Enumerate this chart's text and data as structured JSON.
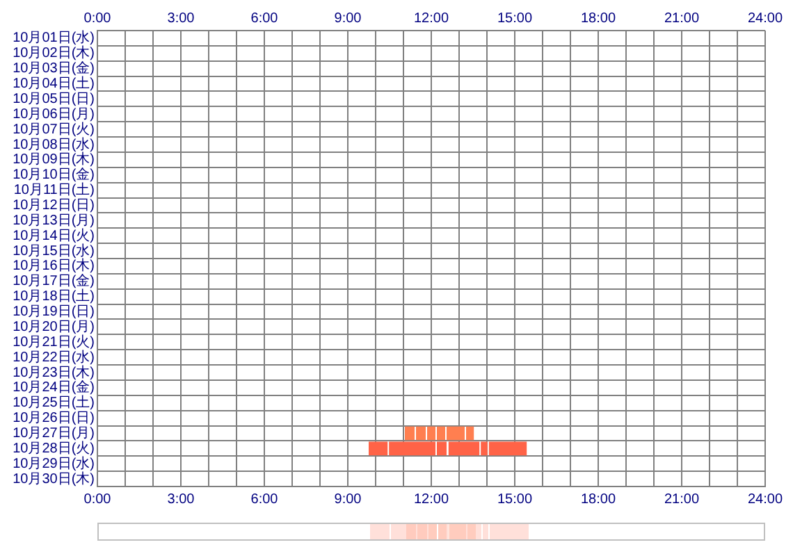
{
  "chart_data": {
    "type": "bar",
    "orientation": "horizontal",
    "grid": true,
    "legend": false,
    "categories": [
      "10月01日(水)",
      "10月02日(木)",
      "10月03日(金)",
      "10月04日(土)",
      "10月05日(日)",
      "10月06日(月)",
      "10月07日(火)",
      "10月08日(水)",
      "10月09日(木)",
      "10月10日(金)",
      "10月11日(土)",
      "10月12日(日)",
      "10月13日(月)",
      "10月14日(火)",
      "10月15日(水)",
      "10月16日(木)",
      "10月17日(金)",
      "10月18日(土)",
      "10月19日(日)",
      "10月20日(月)",
      "10月21日(火)",
      "10月22日(水)",
      "10月23日(木)",
      "10月24日(金)",
      "10月25日(土)",
      "10月26日(日)",
      "10月27日(月)",
      "10月28日(火)",
      "10月29日(水)",
      "10月30日(木)"
    ],
    "xlim": [
      0,
      24
    ],
    "xticks": [
      {
        "value": 0,
        "label": "0:00"
      },
      {
        "value": 1,
        "label": null
      },
      {
        "value": 2,
        "label": null
      },
      {
        "value": 3,
        "label": "3:00"
      },
      {
        "value": 4,
        "label": null
      },
      {
        "value": 5,
        "label": null
      },
      {
        "value": 6,
        "label": "6:00"
      },
      {
        "value": 7,
        "label": null
      },
      {
        "value": 8,
        "label": null
      },
      {
        "value": 9,
        "label": "9:00"
      },
      {
        "value": 10,
        "label": null
      },
      {
        "value": 11,
        "label": null
      },
      {
        "value": 12,
        "label": "12:00"
      },
      {
        "value": 13,
        "label": null
      },
      {
        "value": 14,
        "label": null
      },
      {
        "value": 15,
        "label": "15:00"
      },
      {
        "value": 16,
        "label": null
      },
      {
        "value": 17,
        "label": null
      },
      {
        "value": 18,
        "label": "18:00"
      },
      {
        "value": 19,
        "label": null
      },
      {
        "value": 20,
        "label": null
      },
      {
        "value": 21,
        "label": "21:00"
      },
      {
        "value": 22,
        "label": null
      },
      {
        "value": 23,
        "label": null
      },
      {
        "value": 24,
        "label": "24:00"
      }
    ],
    "x2lim": [
      0,
      24
    ],
    "x2ticks": [
      {
        "value": 0,
        "label": "0:00"
      },
      {
        "value": 1,
        "label": null
      },
      {
        "value": 2,
        "label": null
      },
      {
        "value": 3,
        "label": "3:00"
      },
      {
        "value": 4,
        "label": null
      },
      {
        "value": 5,
        "label": null
      },
      {
        "value": 6,
        "label": "6:00"
      },
      {
        "value": 7,
        "label": null
      },
      {
        "value": 8,
        "label": null
      },
      {
        "value": 9,
        "label": "9:00"
      },
      {
        "value": 10,
        "label": null
      },
      {
        "value": 11,
        "label": null
      },
      {
        "value": 12,
        "label": "12:00"
      },
      {
        "value": 13,
        "label": null
      },
      {
        "value": 14,
        "label": null
      },
      {
        "value": 15,
        "label": "15:00"
      },
      {
        "value": 16,
        "label": null
      },
      {
        "value": 17,
        "label": null
      },
      {
        "value": 18,
        "label": "18:00"
      },
      {
        "value": 19,
        "label": null
      },
      {
        "value": 20,
        "label": null
      },
      {
        "value": 21,
        "label": "21:00"
      },
      {
        "value": 22,
        "label": null
      },
      {
        "value": 23,
        "label": null
      },
      {
        "value": 24,
        "label": "24:00"
      }
    ],
    "series": [
      {
        "base": [
          null,
          null,
          null,
          null,
          null,
          null,
          null,
          null,
          null,
          null,
          null,
          null,
          null,
          null,
          null,
          null,
          null,
          null,
          null,
          null,
          null,
          null,
          null,
          null,
          null,
          null,
          11.05,
          9.75,
          null,
          null
        ],
        "values": [
          null,
          null,
          null,
          null,
          null,
          null,
          null,
          null,
          null,
          null,
          null,
          null,
          null,
          null,
          null,
          null,
          null,
          null,
          null,
          null,
          null,
          null,
          null,
          null,
          null,
          null,
          0.35,
          0.68,
          null,
          null
        ],
        "colors": [
          null,
          null,
          null,
          null,
          null,
          null,
          null,
          null,
          null,
          null,
          null,
          null,
          null,
          null,
          null,
          null,
          null,
          null,
          null,
          null,
          null,
          null,
          null,
          null,
          null,
          null,
          "#ff7f50",
          "#ff6347",
          null,
          null
        ]
      },
      {
        "base": [
          null,
          null,
          null,
          null,
          null,
          null,
          null,
          null,
          null,
          null,
          null,
          null,
          null,
          null,
          null,
          null,
          null,
          null,
          null,
          null,
          null,
          null,
          null,
          null,
          null,
          null,
          11.45,
          10.48,
          null,
          null
        ],
        "values": [
          null,
          null,
          null,
          null,
          null,
          null,
          null,
          null,
          null,
          null,
          null,
          null,
          null,
          null,
          null,
          null,
          null,
          null,
          null,
          null,
          null,
          null,
          null,
          null,
          null,
          null,
          0.35,
          1.67,
          null,
          null
        ],
        "colors": [
          null,
          null,
          null,
          null,
          null,
          null,
          null,
          null,
          null,
          null,
          null,
          null,
          null,
          null,
          null,
          null,
          null,
          null,
          null,
          null,
          null,
          null,
          null,
          null,
          null,
          null,
          "#ff7f50",
          "#ff6347",
          null,
          null
        ]
      },
      {
        "base": [
          null,
          null,
          null,
          null,
          null,
          null,
          null,
          null,
          null,
          null,
          null,
          null,
          null,
          null,
          null,
          null,
          null,
          null,
          null,
          null,
          null,
          null,
          null,
          null,
          null,
          null,
          11.85,
          12.2,
          null,
          null
        ],
        "values": [
          null,
          null,
          null,
          null,
          null,
          null,
          null,
          null,
          null,
          null,
          null,
          null,
          null,
          null,
          null,
          null,
          null,
          null,
          null,
          null,
          null,
          null,
          null,
          null,
          null,
          null,
          0.3,
          0.35,
          null,
          null
        ],
        "colors": [
          null,
          null,
          null,
          null,
          null,
          null,
          null,
          null,
          null,
          null,
          null,
          null,
          null,
          null,
          null,
          null,
          null,
          null,
          null,
          null,
          null,
          null,
          null,
          null,
          null,
          null,
          "#ff7f50",
          "#ff6347",
          null,
          null
        ]
      },
      {
        "base": [
          null,
          null,
          null,
          null,
          null,
          null,
          null,
          null,
          null,
          null,
          null,
          null,
          null,
          null,
          null,
          null,
          null,
          null,
          null,
          null,
          null,
          null,
          null,
          null,
          null,
          null,
          12.2,
          12.62,
          null,
          null
        ],
        "values": [
          null,
          null,
          null,
          null,
          null,
          null,
          null,
          null,
          null,
          null,
          null,
          null,
          null,
          null,
          null,
          null,
          null,
          null,
          null,
          null,
          null,
          null,
          null,
          null,
          null,
          null,
          0.3,
          1.11,
          null,
          null
        ],
        "colors": [
          null,
          null,
          null,
          null,
          null,
          null,
          null,
          null,
          null,
          null,
          null,
          null,
          null,
          null,
          null,
          null,
          null,
          null,
          null,
          null,
          null,
          null,
          null,
          null,
          null,
          null,
          "#ff7f50",
          "#ff6347",
          null,
          null
        ]
      },
      {
        "base": [
          null,
          null,
          null,
          null,
          null,
          null,
          null,
          null,
          null,
          null,
          null,
          null,
          null,
          null,
          null,
          null,
          null,
          null,
          null,
          null,
          null,
          null,
          null,
          null,
          null,
          null,
          12.55,
          13.78,
          null,
          null
        ],
        "values": [
          null,
          null,
          null,
          null,
          null,
          null,
          null,
          null,
          null,
          null,
          null,
          null,
          null,
          null,
          null,
          null,
          null,
          null,
          null,
          null,
          null,
          null,
          null,
          null,
          null,
          null,
          0.65,
          0.24,
          null,
          null
        ],
        "colors": [
          null,
          null,
          null,
          null,
          null,
          null,
          null,
          null,
          null,
          null,
          null,
          null,
          null,
          null,
          null,
          null,
          null,
          null,
          null,
          null,
          null,
          null,
          null,
          null,
          null,
          null,
          "#ff7f50",
          "#ff6347",
          null,
          null
        ]
      },
      {
        "base": [
          null,
          null,
          null,
          null,
          null,
          null,
          null,
          null,
          null,
          null,
          null,
          null,
          null,
          null,
          null,
          null,
          null,
          null,
          null,
          null,
          null,
          null,
          null,
          null,
          null,
          null,
          13.25,
          14.07,
          null,
          null
        ],
        "values": [
          null,
          null,
          null,
          null,
          null,
          null,
          null,
          null,
          null,
          null,
          null,
          null,
          null,
          null,
          null,
          null,
          null,
          null,
          null,
          null,
          null,
          null,
          null,
          null,
          null,
          null,
          0.28,
          1.36,
          null,
          null
        ],
        "colors": [
          null,
          null,
          null,
          null,
          null,
          null,
          null,
          null,
          null,
          null,
          null,
          null,
          null,
          null,
          null,
          null,
          null,
          null,
          null,
          null,
          null,
          null,
          null,
          null,
          null,
          null,
          "#ff7f50",
          "#ff6347",
          null,
          null
        ]
      }
    ]
  }
}
